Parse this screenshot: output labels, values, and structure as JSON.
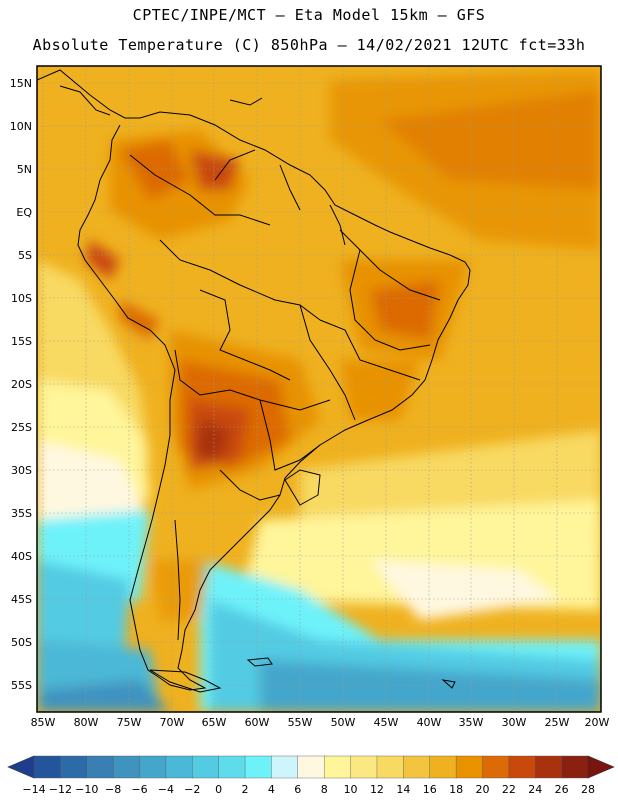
{
  "header": {
    "line1": "CPTEC/INPE/MCT —  Eta Model 15km — GFS",
    "line2": "Absolute Temperature (C) 850hPa — 14/02/2021 12UTC fct=33h"
  },
  "map": {
    "lat_labels": [
      "15N",
      "10N",
      "5N",
      "EQ",
      "5S",
      "10S",
      "15S",
      "20S",
      "25S",
      "30S",
      "35S",
      "40S",
      "45S",
      "50S",
      "55S"
    ],
    "lon_labels": [
      "85W",
      "80W",
      "75W",
      "70W",
      "65W",
      "60W",
      "55W",
      "50W",
      "45W",
      "40W",
      "35W",
      "30W",
      "25W",
      "20W"
    ]
  },
  "colorbar": {
    "labels": [
      "-14",
      "-12",
      "-10",
      "-8",
      "-6",
      "-4",
      "-2",
      "0",
      "2",
      "4",
      "6",
      "8",
      "10",
      "12",
      "14",
      "16",
      "18",
      "20",
      "22",
      "24",
      "26",
      "28"
    ],
    "colors": [
      "#1f3d8f",
      "#23549c",
      "#2c6aa8",
      "#3a7fb3",
      "#3f93bf",
      "#45a6cb",
      "#4bb8d7",
      "#52cbe3",
      "#5edcec",
      "#6ef2fa",
      "#cdf5fb",
      "#fff8e0",
      "#fff59a",
      "#fbe882",
      "#f8d962",
      "#f2c440",
      "#efb11f",
      "#e89200",
      "#dc6a06",
      "#c9480c",
      "#a8320e",
      "#8a2010",
      "#7a1410"
    ]
  }
}
